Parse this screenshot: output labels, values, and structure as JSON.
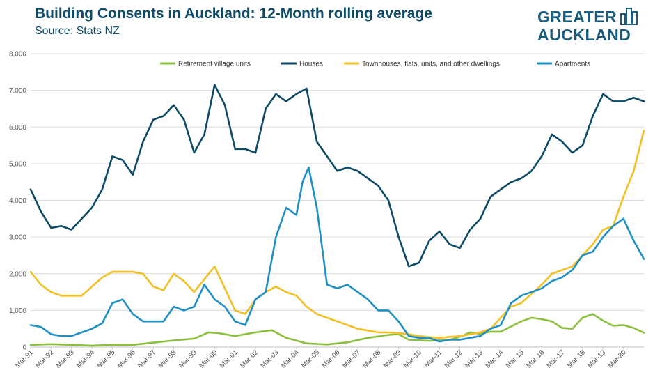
{
  "title": "Building Consents in Auckland: 12-Month rolling average",
  "subtitle": "Source: Stats NZ",
  "logo": {
    "line1": "GREATER",
    "line2": "AUCKLAND",
    "icon": "city-skyline-icon",
    "color": "#1a5d7e"
  },
  "chart_data": {
    "type": "line",
    "title": "Building Consents in Auckland: 12-Month rolling average",
    "subtitle": "Source: Stats NZ",
    "xlabel": "",
    "ylabel": "",
    "ylim": [
      0,
      8000
    ],
    "yticks": [
      0,
      1000,
      2000,
      3000,
      4000,
      5000,
      6000,
      7000,
      8000
    ],
    "ytick_labels": [
      "0",
      "1,000",
      "2,000",
      "3,000",
      "4,000",
      "5,000",
      "6,000",
      "7,000",
      "8,000"
    ],
    "grid": "horizontal",
    "legend_position": "top",
    "x_tick_labels": [
      "Mar-91",
      "Mar-92",
      "Mar-93",
      "Mar-94",
      "Mar-95",
      "Mar-96",
      "Mar-97",
      "Mar-98",
      "Mar-99",
      "Mar-00",
      "Mar-01",
      "Mar-02",
      "Mar-03",
      "Mar-04",
      "Mar-05",
      "Mar-06",
      "Mar-07",
      "Mar-08",
      "Mar-09",
      "Mar-10",
      "Mar-11",
      "Mar-12",
      "Mar-13",
      "Mar-14",
      "Mar-15",
      "Mar-16",
      "Mar-17",
      "Mar-18",
      "Mar-19",
      "Mar-20"
    ],
    "x_range": [
      1991.0,
      2021.0
    ],
    "series": [
      {
        "name": "Retirement village units",
        "color": "#8cbf3f",
        "x": [
          1991.0,
          1992.0,
          1993.0,
          1994.0,
          1995.0,
          1996.0,
          1997.0,
          1998.0,
          1999.0,
          1999.7,
          2000.2,
          2001.0,
          2002.0,
          2002.8,
          2003.5,
          2004.5,
          2005.5,
          2006.5,
          2007.5,
          2008.5,
          2009.0,
          2009.5,
          2010.5,
          2011.5,
          2012.0,
          2012.5,
          2013.0,
          2013.5,
          2014.0,
          2014.5,
          2015.0,
          2015.5,
          2016.0,
          2016.5,
          2017.0,
          2017.5,
          2018.0,
          2018.5,
          2019.0,
          2019.5,
          2020.0,
          2020.5,
          2021.0
        ],
        "values": [
          60,
          80,
          60,
          40,
          60,
          60,
          120,
          180,
          230,
          400,
          380,
          300,
          400,
          460,
          250,
          100,
          70,
          130,
          250,
          330,
          350,
          200,
          170,
          200,
          280,
          400,
          360,
          420,
          420,
          560,
          700,
          800,
          760,
          700,
          520,
          500,
          800,
          900,
          720,
          580,
          600,
          520,
          390
        ]
      },
      {
        "name": "Houses",
        "color": "#0d4a66",
        "x": [
          1991.0,
          1991.5,
          1992.0,
          1992.5,
          1993.0,
          1993.5,
          1994.0,
          1994.5,
          1995.0,
          1995.5,
          1996.0,
          1996.5,
          1997.0,
          1997.5,
          1998.0,
          1998.5,
          1999.0,
          1999.5,
          2000.0,
          2000.5,
          2001.0,
          2001.5,
          2002.0,
          2002.5,
          2003.0,
          2003.5,
          2004.0,
          2004.5,
          2005.0,
          2005.5,
          2006.0,
          2006.5,
          2007.0,
          2007.5,
          2008.0,
          2008.5,
          2009.0,
          2009.5,
          2010.0,
          2010.5,
          2011.0,
          2011.5,
          2012.0,
          2012.5,
          2013.0,
          2013.5,
          2014.0,
          2014.5,
          2015.0,
          2015.5,
          2016.0,
          2016.5,
          2017.0,
          2017.5,
          2018.0,
          2018.5,
          2019.0,
          2019.5,
          2020.0,
          2020.5,
          2021.0
        ],
        "values": [
          4300,
          3700,
          3250,
          3300,
          3200,
          3500,
          3800,
          4300,
          5200,
          5100,
          4700,
          5600,
          6200,
          6300,
          6600,
          6200,
          5300,
          5800,
          7150,
          6600,
          5400,
          5400,
          5300,
          6500,
          6900,
          6700,
          6900,
          7050,
          5600,
          5200,
          4800,
          4900,
          4800,
          4600,
          4400,
          4000,
          3000,
          2200,
          2300,
          2900,
          3150,
          2800,
          2700,
          3200,
          3500,
          4100,
          4300,
          4500,
          4600,
          4800,
          5200,
          5800,
          5600,
          5300,
          5500,
          6300,
          6900,
          6700,
          6700,
          6800,
          6700
        ]
      },
      {
        "name": "Townhouses, flats, units, and other dwellings",
        "color": "#f2bf26",
        "x": [
          1991.0,
          1991.5,
          1992.0,
          1992.5,
          1993.0,
          1993.5,
          1994.0,
          1994.5,
          1995.0,
          1995.5,
          1996.0,
          1996.5,
          1997.0,
          1997.5,
          1998.0,
          1998.5,
          1999.0,
          1999.5,
          2000.0,
          2000.5,
          2001.0,
          2001.5,
          2002.0,
          2002.5,
          2003.0,
          2003.5,
          2004.0,
          2004.5,
          2005.0,
          2005.5,
          2006.0,
          2006.5,
          2007.0,
          2007.5,
          2008.0,
          2008.5,
          2009.0,
          2009.5,
          2010.0,
          2010.5,
          2011.0,
          2011.5,
          2012.0,
          2012.5,
          2013.0,
          2013.5,
          2014.0,
          2014.5,
          2015.0,
          2015.5,
          2016.0,
          2016.5,
          2017.0,
          2017.5,
          2018.0,
          2018.5,
          2019.0,
          2019.5,
          2020.0,
          2020.5,
          2021.0
        ],
        "values": [
          2050,
          1700,
          1500,
          1400,
          1400,
          1400,
          1650,
          1900,
          2050,
          2050,
          2050,
          2000,
          1650,
          1550,
          2000,
          1800,
          1500,
          1850,
          2200,
          1600,
          1000,
          900,
          1300,
          1500,
          1650,
          1500,
          1400,
          1100,
          900,
          800,
          700,
          600,
          500,
          450,
          400,
          400,
          380,
          350,
          300,
          270,
          250,
          280,
          300,
          350,
          400,
          500,
          800,
          1100,
          1200,
          1450,
          1700,
          2000,
          2100,
          2200,
          2500,
          2800,
          3200,
          3300,
          4100,
          4800,
          5900
        ]
      },
      {
        "name": "Apartments",
        "color": "#1f8fc4",
        "x": [
          1991.0,
          1991.5,
          1992.0,
          1992.5,
          1993.0,
          1993.5,
          1994.0,
          1994.5,
          1995.0,
          1995.5,
          1996.0,
          1996.5,
          1997.0,
          1997.5,
          1998.0,
          1998.5,
          1999.0,
          1999.5,
          2000.0,
          2000.5,
          2001.0,
          2001.5,
          2002.0,
          2002.5,
          2003.0,
          2003.5,
          2004.0,
          2004.3,
          2004.6,
          2005.0,
          2005.5,
          2006.0,
          2006.5,
          2007.0,
          2007.5,
          2008.0,
          2008.5,
          2009.0,
          2009.5,
          2010.0,
          2010.5,
          2011.0,
          2011.5,
          2012.0,
          2012.5,
          2013.0,
          2013.5,
          2014.0,
          2014.5,
          2015.0,
          2015.5,
          2016.0,
          2016.5,
          2017.0,
          2017.5,
          2018.0,
          2018.5,
          2019.0,
          2019.5,
          2020.0,
          2020.5,
          2021.0
        ],
        "values": [
          600,
          550,
          350,
          300,
          300,
          400,
          500,
          650,
          1200,
          1300,
          900,
          700,
          700,
          700,
          1100,
          1000,
          1100,
          1700,
          1300,
          1100,
          700,
          600,
          1300,
          1500,
          3000,
          3800,
          3600,
          4500,
          4900,
          3800,
          1700,
          1600,
          1700,
          1500,
          1300,
          1000,
          1000,
          700,
          300,
          250,
          250,
          150,
          200,
          200,
          250,
          300,
          500,
          600,
          1200,
          1400,
          1500,
          1600,
          1800,
          1900,
          2100,
          2500,
          2600,
          3000,
          3300,
          3500,
          2900,
          2400
        ]
      }
    ]
  }
}
